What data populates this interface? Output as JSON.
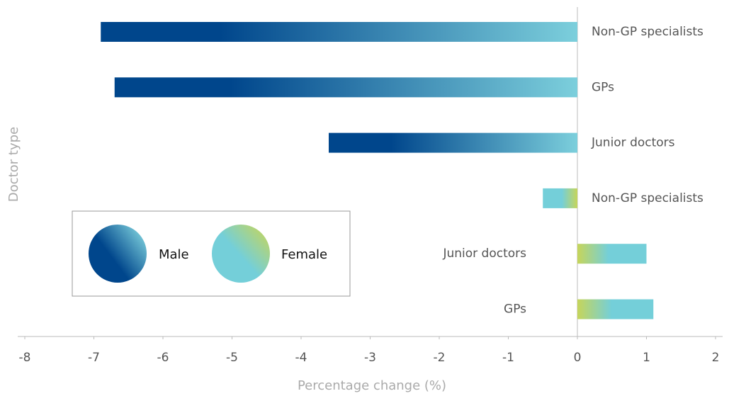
{
  "chart_data": {
    "type": "bar",
    "orientation": "horizontal",
    "x_label": "Percentage change (%)",
    "y_label": "Doctor type",
    "categories": [
      "Non-GP specialists",
      "GPs",
      "Junior doctors",
      "Non-GP specialists",
      "Junior doctors",
      "GPs"
    ],
    "series": [
      {
        "name": "Male",
        "colors": [
          "#00468c",
          "#7ccfdc"
        ],
        "values": [
          -6.9,
          -6.7,
          -3.6,
          null,
          null,
          null
        ]
      },
      {
        "name": "Female",
        "colors": [
          "#74cfd9",
          "#c6d55a"
        ],
        "values": [
          null,
          null,
          null,
          -0.5,
          1.0,
          1.1
        ]
      }
    ],
    "xlim": [
      -8,
      2
    ],
    "xticks": [
      -8,
      -7,
      -6,
      -5,
      -4,
      -3,
      -2,
      -1,
      0,
      1,
      2
    ],
    "legend": "lower left"
  }
}
